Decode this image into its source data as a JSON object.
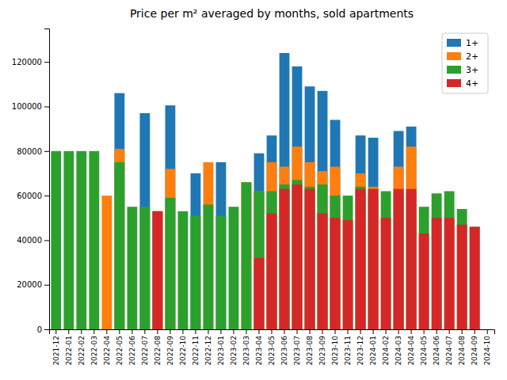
{
  "chart_data": {
    "type": "bar",
    "title": "Price per m² averaged by months, sold apartments",
    "categories": [
      "2021-12",
      "2022-01",
      "2022-02",
      "2022-03",
      "2022-04",
      "2022-05",
      "2022-06",
      "2022-07",
      "2022-08",
      "2022-09",
      "2022-10",
      "2022-11",
      "2022-12",
      "2023-01",
      "2023-02",
      "2023-03",
      "2023-04",
      "2023-05",
      "2023-06",
      "2023-07",
      "2023-08",
      "2023-09",
      "2023-10",
      "2023-11",
      "2023-12",
      "2024-01",
      "2024-02",
      "2024-03",
      "2024-04",
      "2024-05",
      "2024-06",
      "2024-07",
      "2024-08",
      "2024-09",
      "2024-10"
    ],
    "series": [
      {
        "name": "1+",
        "color": "#1f77b4",
        "values": [
          0,
          0,
          0,
          0,
          0,
          106000,
          0,
          97000,
          0,
          100500,
          0,
          70000,
          0,
          75000,
          0,
          0,
          79000,
          87000,
          124000,
          118000,
          109000,
          107000,
          94000,
          0,
          87000,
          86000,
          0,
          89000,
          91000,
          0,
          0,
          0,
          0,
          0,
          0
        ]
      },
      {
        "name": "2+",
        "color": "#ff7f0e",
        "values": [
          0,
          0,
          0,
          0,
          60000,
          81000,
          0,
          0,
          53000,
          72000,
          0,
          0,
          75000,
          0,
          0,
          66000,
          62000,
          75000,
          73000,
          82000,
          75000,
          71000,
          73000,
          0,
          70000,
          64000,
          0,
          73000,
          82000,
          0,
          0,
          0,
          0,
          0,
          0
        ]
      },
      {
        "name": "3+",
        "color": "#2ca02c",
        "values": [
          80000,
          80000,
          80000,
          80000,
          0,
          75000,
          55000,
          55000,
          53000,
          59000,
          53000,
          51000,
          56000,
          51000,
          55000,
          66000,
          62000,
          62000,
          65000,
          67000,
          64000,
          65000,
          60000,
          60000,
          64000,
          60000,
          62000,
          61000,
          61000,
          55000,
          61000,
          62000,
          54000,
          46000,
          0
        ]
      },
      {
        "name": "4+",
        "color": "#d62728",
        "values": [
          0,
          0,
          0,
          0,
          0,
          0,
          0,
          0,
          53000,
          0,
          0,
          0,
          0,
          0,
          0,
          0,
          32000,
          52000,
          63000,
          65000,
          63000,
          52000,
          50000,
          49000,
          63000,
          63000,
          50000,
          63000,
          63000,
          43000,
          50000,
          50000,
          47000,
          46000,
          0
        ]
      }
    ],
    "ylim": [
      0,
      135000
    ],
    "yticks": [
      0,
      20000,
      40000,
      60000,
      80000,
      100000,
      120000
    ],
    "grid": false,
    "legend": "upper right"
  }
}
